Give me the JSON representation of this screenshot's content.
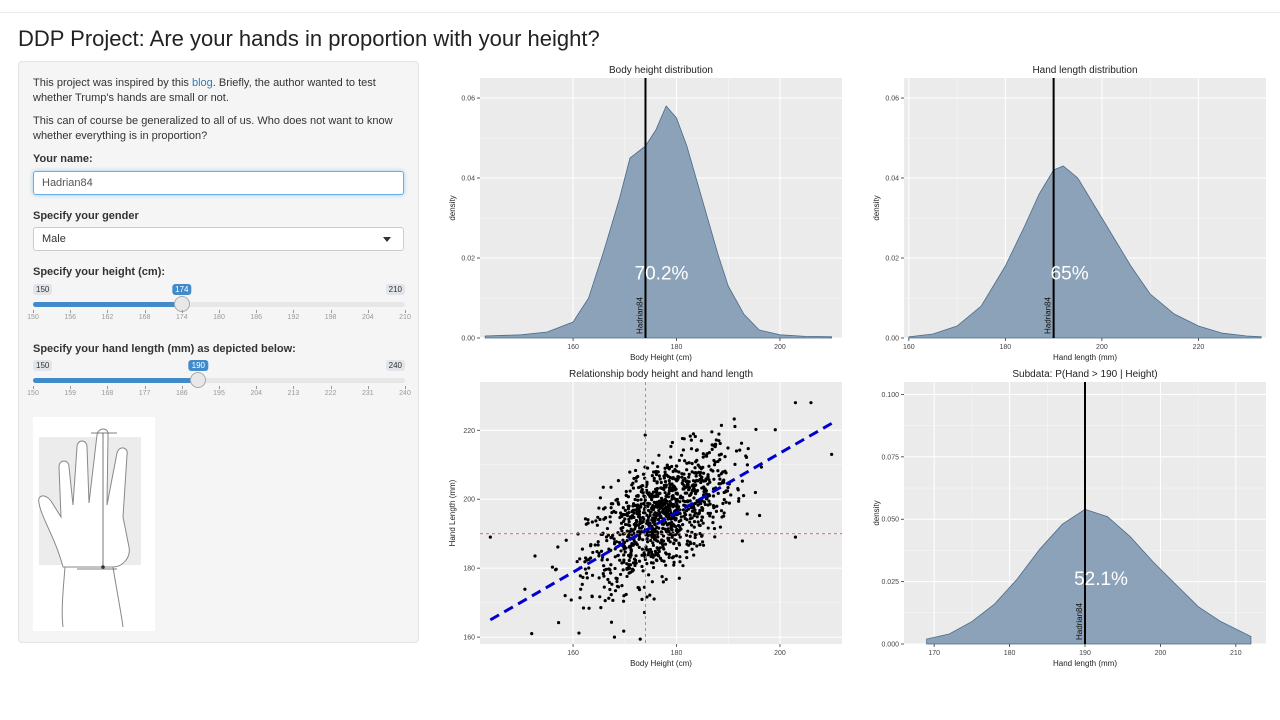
{
  "page": {
    "title": "DDP Project: Are your hands in proportion with your height?"
  },
  "sidebar": {
    "intro_pre": "This project was inspired by this ",
    "intro_link": "blog",
    "intro_post": ". Briefly, the author wanted to test whether Trump's hands are small or not.",
    "intro2": "This can of course be generalized to all of us. Who does not want to know whether everything is in proportion?",
    "name_label": "Your name:",
    "name_value": "Hadrian84",
    "gender_label": "Specify your gender",
    "gender_value": "Male",
    "height_label": "Specify your height (cm):",
    "height": {
      "min": 150,
      "max": 210,
      "value": 174,
      "ticks": [
        150,
        156,
        162,
        168,
        174,
        180,
        186,
        192,
        198,
        204,
        210
      ]
    },
    "hand_label": "Specify your hand length (mm) as depicted below:",
    "hand": {
      "min": 150,
      "max": 240,
      "value": 190,
      "ticks": [
        150,
        159,
        168,
        177,
        186,
        195,
        204,
        213,
        222,
        231,
        240
      ]
    }
  },
  "chart_data": [
    {
      "type": "area",
      "title": "Body height distribution",
      "xlabel": "Body Height (cm)",
      "ylabel": "density",
      "xlim": [
        142,
        212
      ],
      "ylim": [
        0,
        0.065
      ],
      "xticks": [
        160,
        180,
        200
      ],
      "yticks": [
        "0.00",
        "0.02",
        "0.04",
        "0.06"
      ],
      "x": [
        143,
        150,
        155,
        160,
        163,
        166,
        169,
        171,
        173,
        174,
        176,
        178,
        180,
        182,
        184,
        186,
        188,
        190,
        193,
        196,
        200,
        205,
        210
      ],
      "y": [
        0.0005,
        0.0008,
        0.0015,
        0.004,
        0.01,
        0.022,
        0.035,
        0.045,
        0.047,
        0.048,
        0.052,
        0.058,
        0.055,
        0.048,
        0.039,
        0.03,
        0.021,
        0.013,
        0.006,
        0.002,
        0.0008,
        0.0004,
        0.0003
      ],
      "marker_x": 174,
      "marker_label": "Hadrian84",
      "annotation": "70.2%",
      "grid": true
    },
    {
      "type": "area",
      "title": "Hand length distribution",
      "xlabel": "Hand length (mm)",
      "ylabel": "density",
      "xlim": [
        159,
        234
      ],
      "ylim": [
        0,
        0.065
      ],
      "xticks": [
        160,
        180,
        200,
        220
      ],
      "yticks": [
        "0.00",
        "0.02",
        "0.04",
        "0.06"
      ],
      "x": [
        160,
        165,
        170,
        175,
        180,
        184,
        187,
        190,
        192,
        195,
        198,
        202,
        206,
        210,
        215,
        220,
        225,
        230,
        233
      ],
      "y": [
        0.0003,
        0.001,
        0.003,
        0.008,
        0.018,
        0.028,
        0.036,
        0.042,
        0.043,
        0.04,
        0.034,
        0.026,
        0.018,
        0.011,
        0.006,
        0.003,
        0.0012,
        0.0005,
        0.0003
      ],
      "marker_x": 190,
      "marker_label": "Hadrian84",
      "annotation": "65%",
      "grid": true
    },
    {
      "type": "scatter",
      "title": "Relationship body height and hand length",
      "xlabel": "Body Height (cm)",
      "ylabel": "Hand Length (mm)",
      "xlim": [
        142,
        212
      ],
      "ylim": [
        158,
        234
      ],
      "xticks": [
        160,
        180,
        200
      ],
      "yticks": [
        160,
        180,
        200,
        220
      ],
      "trend": {
        "x": [
          144,
          210
        ],
        "y": [
          165,
          222
        ]
      },
      "ref_x": 174,
      "ref_y": 190,
      "grid": true
    },
    {
      "type": "area",
      "title": "Subdata: P(Hand > 190 | Height)",
      "xlabel": "Hand length (mm)",
      "ylabel": "density",
      "xlim": [
        166,
        214
      ],
      "ylim": [
        0,
        0.105
      ],
      "xticks": [
        170,
        180,
        190,
        200,
        210
      ],
      "yticks": [
        "0.000",
        "0.025",
        "0.050",
        "0.075",
        "0.100"
      ],
      "x": [
        169,
        172,
        175,
        178,
        181,
        184,
        187,
        190,
        193,
        196,
        199,
        202,
        205,
        208,
        212
      ],
      "y": [
        0.002,
        0.004,
        0.009,
        0.016,
        0.026,
        0.038,
        0.048,
        0.054,
        0.051,
        0.043,
        0.033,
        0.024,
        0.015,
        0.009,
        0.003
      ],
      "marker_x": 190,
      "marker_label": "Hadrian84",
      "annotation": "52.1%",
      "grid": true
    }
  ],
  "colors": {
    "accent": "#428bca",
    "fill": "#8ca2b8",
    "stroke": "#4a6a8a",
    "panel": "#ebebeb",
    "trend": "#0000cc",
    "ref": "#ff4d4d"
  }
}
